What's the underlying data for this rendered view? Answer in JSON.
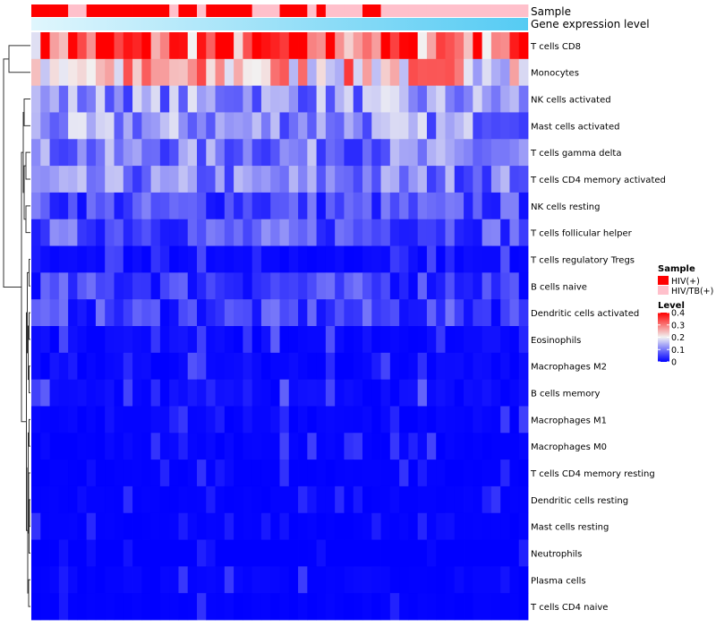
{
  "chart_data": {
    "type": "heatmap",
    "title": "",
    "annotation_tracks": [
      "Sample",
      "Gene expression level"
    ],
    "sample_annotation": [
      "HIV(+)",
      "HIV(+)",
      "HIV(+)",
      "HIV(+)",
      "HIV/TB(+)",
      "HIV/TB(+)",
      "HIV(+)",
      "HIV(+)",
      "HIV(+)",
      "HIV(+)",
      "HIV(+)",
      "HIV(+)",
      "HIV(+)",
      "HIV(+)",
      "HIV(+)",
      "HIV/TB(+)",
      "HIV(+)",
      "HIV(+)",
      "HIV/TB(+)",
      "HIV(+)",
      "HIV(+)",
      "HIV(+)",
      "HIV(+)",
      "HIV(+)",
      "HIV/TB(+)",
      "HIV/TB(+)",
      "HIV/TB(+)",
      "HIV(+)",
      "HIV(+)",
      "HIV(+)",
      "HIV/TB(+)",
      "HIV(+)",
      "HIV/TB(+)",
      "HIV/TB(+)",
      "HIV/TB(+)",
      "HIV/TB(+)",
      "HIV(+)",
      "HIV(+)",
      "HIV/TB(+)",
      "HIV/TB(+)",
      "HIV/TB(+)",
      "HIV/TB(+)",
      "HIV/TB(+)",
      "HIV/TB(+)",
      "HIV/TB(+)",
      "HIV/TB(+)",
      "HIV/TB(+)",
      "HIV/TB(+)",
      "HIV/TB(+)",
      "HIV/TB(+)",
      "HIV/TB(+)",
      "HIV/TB(+)",
      "HIV/TB(+)",
      "HIV/TB(+)"
    ],
    "rows": [
      "T cells CD8",
      "Monocytes",
      "NK cells activated",
      "Mast cells activated",
      "T cells gamma delta",
      "T cells CD4 memory activated",
      "NK cells resting",
      "T cells follicular helper",
      "T cells regulatory  Tregs",
      "B cells naive",
      "Dendritic cells activated",
      "Eosinophils",
      "Macrophages M2",
      "B cells memory",
      "Macrophages M1",
      "Macrophages M0",
      "T cells CD4 memory resting",
      "Dendritic cells resting",
      "Mast cells resting",
      "Neutrophils",
      "Plasma cells",
      "T cells CD4 naive"
    ],
    "n_samples": 54,
    "value_range": [
      0,
      0.4
    ],
    "row_means": [
      0.33,
      0.24,
      0.12,
      0.12,
      0.1,
      0.1,
      0.06,
      0.07,
      0.03,
      0.05,
      0.05,
      0.04,
      0.03,
      0.04,
      0.02,
      0.02,
      0.01,
      0.01,
      0.01,
      0.0,
      0.02,
      0.01
    ],
    "color_stops": [
      {
        "value": 0,
        "color": "#0000ff"
      },
      {
        "value": 0.2,
        "color": "#f2f2f2"
      },
      {
        "value": 0.4,
        "color": "#ff0000"
      }
    ],
    "legend": {
      "sample": {
        "title": "Sample",
        "entries": [
          {
            "label": "HIV(+)",
            "color": "#ff0000"
          },
          {
            "label": "HIV/TB(+)",
            "color": "#ffc0cb"
          }
        ]
      },
      "level": {
        "title": "Level",
        "ticks": [
          "0.4",
          "0.3",
          "0.2",
          "0.1",
          "0"
        ]
      }
    },
    "gene_expression_colors": [
      "#e0f6fd",
      "#55cbf3"
    ]
  }
}
